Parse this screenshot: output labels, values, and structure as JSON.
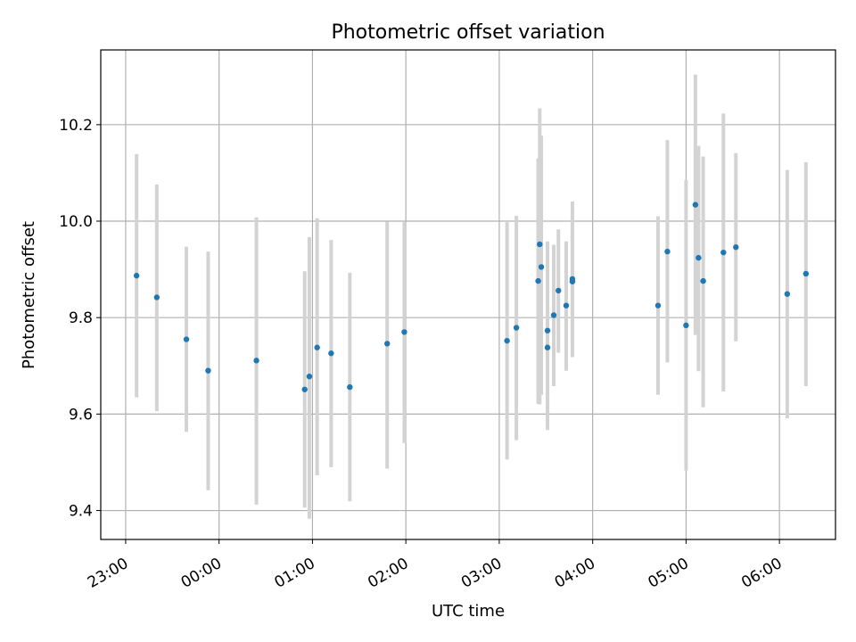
{
  "chart_data": {
    "type": "scatter",
    "title": "Photometric offset variation",
    "xlabel": "UTC time",
    "ylabel": "Photometric offset",
    "x_tick_labels": [
      "23:00",
      "00:00",
      "01:00",
      "02:00",
      "03:00",
      "04:00",
      "05:00",
      "06:00"
    ],
    "y_tick_labels": [
      "9.4",
      "9.6",
      "9.8",
      "10.0",
      "10.2"
    ],
    "y_ticks": [
      9.4,
      9.6,
      9.8,
      10.0,
      10.2
    ],
    "xlim": [
      "22:44",
      "06:36"
    ],
    "ylim": [
      9.34,
      10.355
    ],
    "grid": true,
    "point_color": "#1f77b4",
    "errorbar_color": "#d3d3d3",
    "series": [
      {
        "x": [
          "23:07",
          "23:20",
          "23:39",
          "23:53",
          "00:24",
          "00:55",
          "00:58",
          "01:03",
          "01:12",
          "01:24",
          "01:48",
          "01:59",
          "03:05",
          "03:11",
          "03:25",
          "03:26",
          "03:27",
          "03:31",
          "03:31",
          "03:35",
          "03:38",
          "03:43",
          "03:47",
          "03:47",
          "03:47",
          "04:42",
          "04:48",
          "05:00",
          "05:06",
          "05:08",
          "05:11",
          "05:24",
          "05:32",
          "06:05",
          "06:17"
        ],
        "y": [
          9.887,
          9.842,
          9.755,
          9.69,
          9.711,
          9.651,
          9.678,
          9.738,
          9.726,
          9.656,
          9.746,
          9.77,
          9.752,
          9.779,
          9.876,
          9.952,
          9.905,
          9.738,
          9.773,
          9.805,
          9.856,
          9.825,
          9.875,
          9.88,
          9.875,
          9.825,
          9.937,
          9.784,
          10.034,
          9.924,
          9.876,
          9.935,
          9.946,
          9.849,
          9.891
        ],
        "y_err_low": [
          9.635,
          9.606,
          9.563,
          9.442,
          9.412,
          9.406,
          9.383,
          9.473,
          9.49,
          9.419,
          9.487,
          9.54,
          9.506,
          9.546,
          9.621,
          9.62,
          9.64,
          9.567,
          9.596,
          9.658,
          9.727,
          9.69,
          9.74,
          9.718,
          9.74,
          9.64,
          9.707,
          9.483,
          9.764,
          9.689,
          9.614,
          9.647,
          9.751,
          9.591,
          9.658
        ],
        "y_err_high": [
          10.139,
          10.076,
          9.947,
          9.937,
          10.008,
          9.896,
          9.967,
          10.006,
          9.961,
          9.893,
          9.999,
          9.998,
          9.998,
          10.011,
          10.13,
          10.234,
          10.177,
          9.955,
          9.958,
          9.951,
          9.983,
          9.958,
          10.013,
          10.041,
          10.013,
          10.01,
          10.168,
          10.085,
          10.304,
          10.156,
          10.134,
          10.223,
          10.141,
          10.106,
          10.122
        ]
      }
    ]
  }
}
